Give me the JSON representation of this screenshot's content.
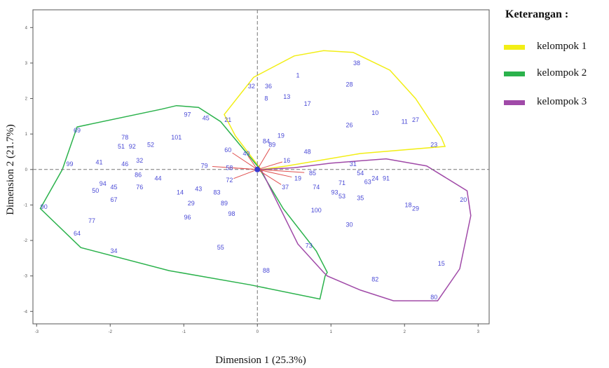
{
  "legend": {
    "title": "Keterangan :",
    "items": [
      {
        "label": "kelompok 1",
        "color": "#f2ee16"
      },
      {
        "label": "kelompok 2",
        "color": "#2bb24c"
      },
      {
        "label": "kelompok 3",
        "color": "#a04aa8"
      }
    ]
  },
  "chart_data": {
    "type": "scatter",
    "title": "",
    "xlabel": "Dimension 1 (25.3%)",
    "ylabel": "Dimension 2 (21.7%)",
    "xlim": [
      -3.05,
      3.15
    ],
    "ylim": [
      -4.35,
      4.5
    ],
    "xticks": [
      "-3",
      "-2",
      "-1",
      "0",
      "1",
      "2",
      "3"
    ],
    "yticks": [
      "-4",
      "-3",
      "-2",
      "-1",
      "0",
      "1",
      "2",
      "3",
      "4"
    ],
    "grid": false,
    "legend_position": "top-right",
    "reference_lines": {
      "x": 0,
      "y": 0
    },
    "points": [
      {
        "label": "1",
        "x": 0.55,
        "y": 2.65
      },
      {
        "label": "38",
        "x": 1.35,
        "y": 3.0
      },
      {
        "label": "28",
        "x": 1.25,
        "y": 2.4
      },
      {
        "label": "32",
        "x": -0.08,
        "y": 2.35
      },
      {
        "label": "36",
        "x": 0.15,
        "y": 2.35
      },
      {
        "label": "8",
        "x": 0.12,
        "y": 2.0
      },
      {
        "label": "13",
        "x": 0.4,
        "y": 2.05
      },
      {
        "label": "17",
        "x": 0.68,
        "y": 1.85
      },
      {
        "label": "10",
        "x": 1.6,
        "y": 1.6
      },
      {
        "label": "11",
        "x": 2.0,
        "y": 1.35
      },
      {
        "label": "27",
        "x": 2.15,
        "y": 1.4
      },
      {
        "label": "26",
        "x": 1.25,
        "y": 1.25
      },
      {
        "label": "23",
        "x": 2.4,
        "y": 0.7
      },
      {
        "label": "21",
        "x": -0.4,
        "y": 1.4
      },
      {
        "label": "97",
        "x": -0.95,
        "y": 1.55
      },
      {
        "label": "45",
        "x": -0.7,
        "y": 1.45
      },
      {
        "label": "69",
        "x": -2.45,
        "y": 1.1
      },
      {
        "label": "78",
        "x": -1.8,
        "y": 0.9
      },
      {
        "label": "51",
        "x": -1.85,
        "y": 0.65
      },
      {
        "label": "92",
        "x": -1.7,
        "y": 0.65
      },
      {
        "label": "52",
        "x": -1.45,
        "y": 0.7
      },
      {
        "label": "101",
        "x": -1.1,
        "y": 0.9
      },
      {
        "label": "19",
        "x": 0.32,
        "y": 0.95
      },
      {
        "label": "84",
        "x": 0.12,
        "y": 0.8
      },
      {
        "label": "89",
        "x": 0.2,
        "y": 0.7
      },
      {
        "label": "48",
        "x": 0.68,
        "y": 0.5
      },
      {
        "label": "60",
        "x": -0.4,
        "y": 0.55
      },
      {
        "label": "49",
        "x": -0.15,
        "y": 0.45
      },
      {
        "label": "99",
        "x": -2.55,
        "y": 0.15
      },
      {
        "label": "41",
        "x": -2.15,
        "y": 0.2
      },
      {
        "label": "46",
        "x": -1.8,
        "y": 0.15
      },
      {
        "label": "32",
        "x": -1.6,
        "y": 0.25
      },
      {
        "label": "79",
        "x": -0.72,
        "y": 0.1
      },
      {
        "label": "58",
        "x": -0.38,
        "y": 0.05
      },
      {
        "label": "16",
        "x": 0.4,
        "y": 0.25
      },
      {
        "label": "86",
        "x": -1.62,
        "y": -0.15
      },
      {
        "label": "44",
        "x": -1.35,
        "y": -0.25
      },
      {
        "label": "72",
        "x": -0.38,
        "y": -0.3
      },
      {
        "label": "31",
        "x": 1.3,
        "y": 0.15
      },
      {
        "label": "54",
        "x": 1.4,
        "y": -0.1
      },
      {
        "label": "24",
        "x": 1.6,
        "y": -0.25
      },
      {
        "label": "91",
        "x": 1.75,
        "y": -0.25
      },
      {
        "label": "63",
        "x": 1.5,
        "y": -0.35
      },
      {
        "label": "85",
        "x": 0.75,
        "y": -0.1
      },
      {
        "label": "19",
        "x": 0.55,
        "y": -0.25
      },
      {
        "label": "71",
        "x": 1.15,
        "y": -0.38
      },
      {
        "label": "94",
        "x": -2.1,
        "y": -0.4
      },
      {
        "label": "45",
        "x": -1.95,
        "y": -0.5
      },
      {
        "label": "76",
        "x": -1.6,
        "y": -0.5
      },
      {
        "label": "37",
        "x": 0.38,
        "y": -0.5
      },
      {
        "label": "74",
        "x": 0.8,
        "y": -0.5
      },
      {
        "label": "50",
        "x": -2.2,
        "y": -0.6
      },
      {
        "label": "43",
        "x": -0.8,
        "y": -0.55
      },
      {
        "label": "14",
        "x": -1.05,
        "y": -0.65
      },
      {
        "label": "83",
        "x": -0.55,
        "y": -0.65
      },
      {
        "label": "93",
        "x": 1.05,
        "y": -0.65
      },
      {
        "label": "53",
        "x": 1.15,
        "y": -0.75
      },
      {
        "label": "35",
        "x": 1.4,
        "y": -0.8
      },
      {
        "label": "67",
        "x": -1.95,
        "y": -0.85
      },
      {
        "label": "90",
        "x": -2.9,
        "y": -1.05
      },
      {
        "label": "20",
        "x": 2.8,
        "y": -0.85
      },
      {
        "label": "29",
        "x": -0.9,
        "y": -0.95
      },
      {
        "label": "89",
        "x": -0.45,
        "y": -0.95
      },
      {
        "label": "18",
        "x": 2.05,
        "y": -1.0
      },
      {
        "label": "29",
        "x": 2.15,
        "y": -1.1
      },
      {
        "label": "100",
        "x": 0.8,
        "y": -1.15
      },
      {
        "label": "30",
        "x": 1.25,
        "y": -1.55
      },
      {
        "label": "77",
        "x": -2.25,
        "y": -1.45
      },
      {
        "label": "64",
        "x": -2.45,
        "y": -1.8
      },
      {
        "label": "96",
        "x": -0.95,
        "y": -1.35
      },
      {
        "label": "98",
        "x": -0.35,
        "y": -1.25
      },
      {
        "label": "55",
        "x": -0.5,
        "y": -2.2
      },
      {
        "label": "73",
        "x": 0.7,
        "y": -2.15
      },
      {
        "label": "34",
        "x": -1.95,
        "y": -2.3
      },
      {
        "label": "15",
        "x": 2.5,
        "y": -2.65
      },
      {
        "label": "88",
        "x": 0.12,
        "y": -2.85
      },
      {
        "label": "82",
        "x": 1.6,
        "y": -3.1
      },
      {
        "label": "80",
        "x": 2.4,
        "y": -3.6
      }
    ],
    "series": [
      {
        "name": "kelompok 1"
      },
      {
        "name": "kelompok 2"
      },
      {
        "name": "kelompok 3"
      }
    ],
    "hulls": [
      {
        "series": "kelompok 1",
        "color": "#f2ee16",
        "x": [
          -0.45,
          -0.05,
          0.5,
          0.9,
          1.3,
          1.8,
          2.15,
          2.5,
          2.55,
          1.4,
          0.4,
          0.05,
          -0.3,
          -0.45
        ],
        "y": [
          1.55,
          2.6,
          3.2,
          3.35,
          3.3,
          2.8,
          2.0,
          0.9,
          0.65,
          0.45,
          0.1,
          0.0,
          0.95,
          1.55
        ]
      },
      {
        "series": "kelompok 2",
        "color": "#2bb24c",
        "x": [
          -2.45,
          -1.3,
          -1.1,
          -0.8,
          -0.5,
          0.02,
          0.35,
          0.8,
          0.95,
          0.92,
          0.85,
          -0.1,
          -1.2,
          -2.4,
          -2.95,
          -2.65,
          -2.45
        ],
        "y": [
          1.2,
          1.7,
          1.8,
          1.75,
          1.35,
          0.05,
          -1.1,
          -2.3,
          -2.9,
          -3.0,
          -3.65,
          -3.25,
          -2.85,
          -2.2,
          -1.1,
          0.0,
          1.2
        ]
      },
      {
        "series": "kelompok 3",
        "color": "#a04aa8",
        "x": [
          0.05,
          0.5,
          1.0,
          1.75,
          2.3,
          2.85,
          2.9,
          2.75,
          2.45,
          1.85,
          1.4,
          0.95,
          0.9,
          0.55,
          0.05
        ],
        "y": [
          0.0,
          0.05,
          0.18,
          0.3,
          0.1,
          -0.6,
          -1.3,
          -2.8,
          -3.7,
          -3.7,
          -3.4,
          -3.0,
          -2.9,
          -2.1,
          0.0
        ]
      }
    ]
  }
}
